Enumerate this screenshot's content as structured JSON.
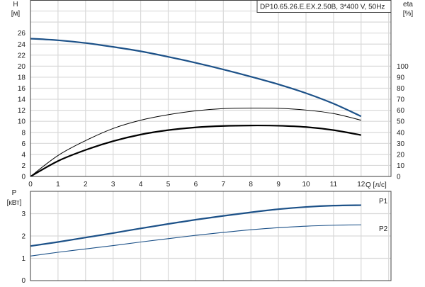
{
  "chart_data": [
    {
      "type": "line",
      "title": "DP10.65.26.E.EX.2.50B, 3*400 V, 50Hz",
      "xlabel": "Q [л/с]",
      "ylabel_left": [
        "H",
        "[м]"
      ],
      "ylabel_right": [
        "eta",
        "[%]"
      ],
      "xlim": [
        0,
        13
      ],
      "ylim_left": [
        0,
        32
      ],
      "ylim_right": [
        0,
        160
      ],
      "x_ticks": [
        0,
        1,
        2,
        3,
        4,
        5,
        6,
        7,
        8,
        9,
        10,
        11,
        12
      ],
      "y_ticks_left": [
        0,
        2,
        4,
        6,
        8,
        10,
        12,
        14,
        16,
        18,
        20,
        22,
        24,
        26
      ],
      "y_ticks_right": [
        0,
        10,
        20,
        30,
        40,
        50,
        60,
        70,
        80,
        90,
        100
      ],
      "grid": true,
      "x": [
        0,
        1,
        2,
        3,
        4,
        5,
        6,
        7,
        8,
        9,
        10,
        11,
        12
      ],
      "series": [
        {
          "axis": "left",
          "color": "#1c5188",
          "width": 2.2,
          "values": [
            25.0,
            24.7,
            24.2,
            23.5,
            22.7,
            21.7,
            20.6,
            19.4,
            18.1,
            16.7,
            15.1,
            13.2,
            10.9
          ]
        },
        {
          "axis": "right",
          "color": "#000000",
          "width": 1,
          "values": [
            0,
            19,
            32.5,
            43.5,
            51,
            56,
            59.5,
            61.5,
            62,
            61.8,
            60.2,
            57,
            51
          ]
        },
        {
          "axis": "right",
          "color": "#000000",
          "width": 2.2,
          "values": [
            0,
            14,
            24,
            32,
            38,
            42,
            44.5,
            45.8,
            46.2,
            46,
            44.8,
            42,
            37.5
          ]
        }
      ]
    },
    {
      "type": "line",
      "ylabel_left": [
        "P",
        "[кВт]"
      ],
      "xlim": [
        0,
        13
      ],
      "ylim": [
        0,
        4
      ],
      "y_ticks": [
        0,
        1,
        2,
        3
      ],
      "grid": true,
      "x": [
        0,
        1,
        2,
        3,
        4,
        5,
        6,
        7,
        8,
        9,
        10,
        11,
        12
      ],
      "series": [
        {
          "name": "P1",
          "color": "#1c5188",
          "width": 2.2,
          "values": [
            1.55,
            1.73,
            1.93,
            2.13,
            2.34,
            2.54,
            2.73,
            2.9,
            3.06,
            3.2,
            3.3,
            3.36,
            3.38
          ]
        },
        {
          "name": "P2",
          "color": "#1c5188",
          "width": 1.1,
          "values": [
            1.1,
            1.27,
            1.42,
            1.57,
            1.73,
            1.88,
            2.03,
            2.16,
            2.28,
            2.37,
            2.44,
            2.48,
            2.5
          ]
        }
      ]
    }
  ]
}
